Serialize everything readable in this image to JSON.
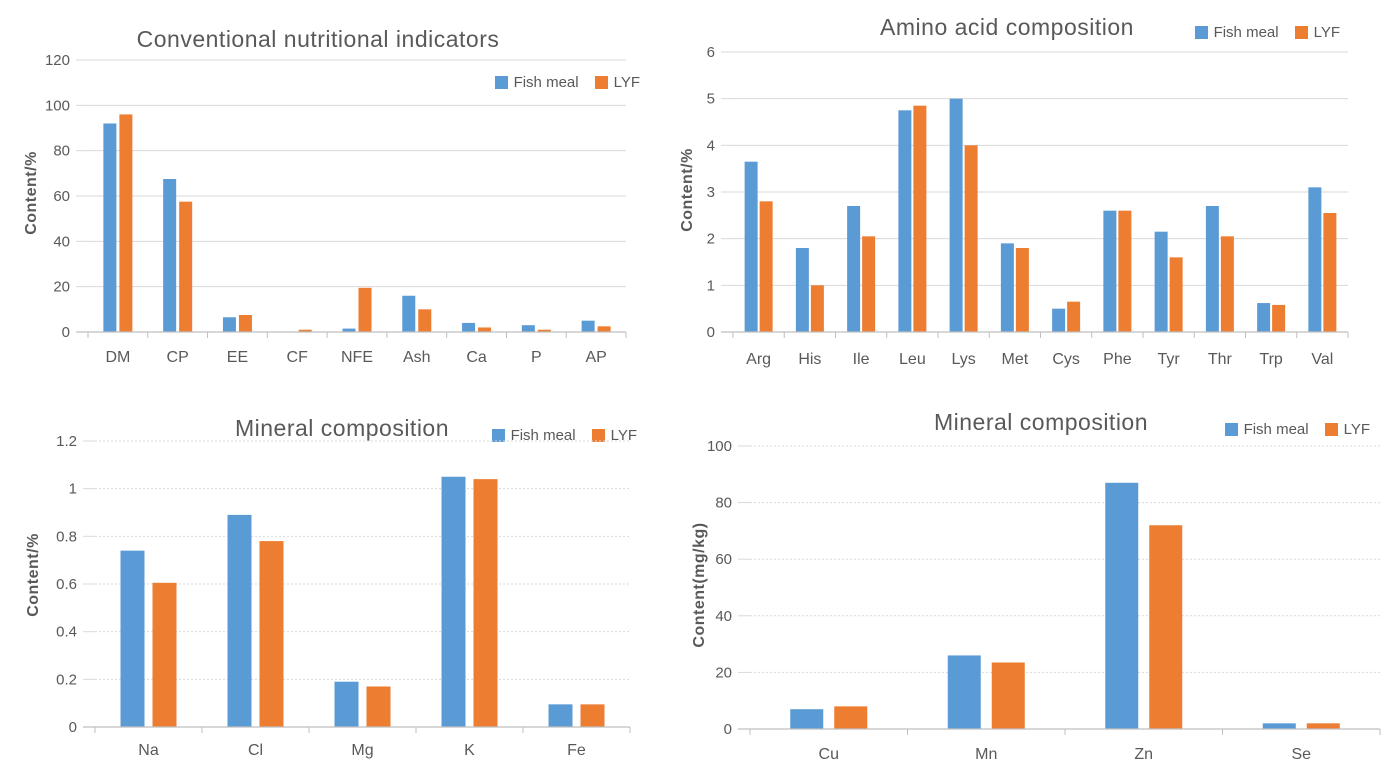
{
  "colors": {
    "fish_meal_blue": "#5B9BD5",
    "lyf_orange": "#ED7D31",
    "grid": "#D9D9D9",
    "axis": "#BFBFBF",
    "text": "#595959"
  },
  "chart_data": [
    {
      "type": "bar",
      "title": "Conventional nutritional indicators",
      "xlabel": "",
      "ylabel": "Content/%",
      "ylim": [
        0,
        120
      ],
      "ytick_step": 20,
      "grid": true,
      "legend_position": "top-right-inside",
      "categories": [
        "DM",
        "CP",
        "EE",
        "CF",
        "NFE",
        "Ash",
        "Ca",
        "P",
        "AP"
      ],
      "series": [
        {
          "name": "Fish meal",
          "color": "#5B9BD5",
          "values": [
            92,
            67.5,
            6.5,
            0,
            1.5,
            16,
            4,
            3,
            5
          ]
        },
        {
          "name": "LYF",
          "color": "#ED7D31",
          "values": [
            96,
            57.5,
            7.5,
            1,
            19.5,
            10,
            2,
            1,
            2.5
          ]
        }
      ]
    },
    {
      "type": "bar",
      "title": "Amino acid composition",
      "xlabel": "",
      "ylabel": "Content/%",
      "ylim": [
        0,
        6
      ],
      "ytick_step": 1,
      "grid": true,
      "legend_position": "top-right",
      "categories": [
        "Arg",
        "His",
        "Ile",
        "Leu",
        "Lys",
        "Met",
        "Cys",
        "Phe",
        "Tyr",
        "Thr",
        "Trp",
        "Val"
      ],
      "series": [
        {
          "name": "Fish meal",
          "color": "#5B9BD5",
          "values": [
            3.65,
            1.8,
            2.7,
            4.75,
            5.0,
            1.9,
            0.5,
            2.6,
            2.15,
            2.7,
            0.62,
            3.1
          ]
        },
        {
          "name": "LYF",
          "color": "#ED7D31",
          "values": [
            2.8,
            1.0,
            2.05,
            4.85,
            4.0,
            1.8,
            0.65,
            2.6,
            1.6,
            2.05,
            0.58,
            2.55
          ]
        }
      ]
    },
    {
      "type": "bar",
      "title": "Mineral composition",
      "xlabel": "",
      "ylabel": "Content/%",
      "ylim": [
        0,
        1.2
      ],
      "ytick_step": 0.2,
      "grid": true,
      "legend_position": "top-right",
      "categories": [
        "Na",
        "Cl",
        "Mg",
        "K",
        "Fe"
      ],
      "series": [
        {
          "name": "Fish meal",
          "color": "#5B9BD5",
          "values": [
            0.74,
            0.89,
            0.19,
            1.05,
            0.095
          ]
        },
        {
          "name": "LYF",
          "color": "#ED7D31",
          "values": [
            0.605,
            0.78,
            0.17,
            1.04,
            0.095
          ]
        }
      ]
    },
    {
      "type": "bar",
      "title": "Mineral composition",
      "xlabel": "",
      "ylabel": "Content(mg/kg)",
      "ylim": [
        0,
        100
      ],
      "ytick_step": 20,
      "grid": true,
      "legend_position": "top-right",
      "categories": [
        "Cu",
        "Mn",
        "Zn",
        "Se"
      ],
      "series": [
        {
          "name": "Fish meal",
          "color": "#5B9BD5",
          "values": [
            7,
            26,
            87,
            2
          ]
        },
        {
          "name": "LYF",
          "color": "#ED7D31",
          "values": [
            8,
            23.5,
            72,
            2
          ]
        }
      ]
    }
  ]
}
